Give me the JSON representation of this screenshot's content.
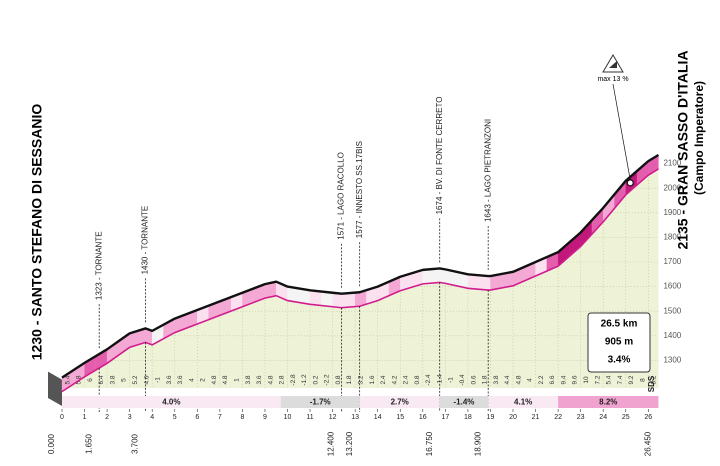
{
  "chart_data": {
    "type": "area",
    "start_label": "1230 - SANTO STEFANO DI SESSANIO",
    "finish_label": "2135 - GRAN SASSO D'ITALIA",
    "finish_sublabel": "(Campo Imperatore)",
    "x": [
      0,
      1,
      2,
      3,
      3.7,
      4,
      5,
      6,
      7,
      8,
      9,
      9.5,
      10,
      11,
      12,
      12.4,
      13.2,
      14,
      15,
      16,
      16.75,
      17,
      18,
      18.9,
      19,
      20,
      21,
      22,
      23,
      24,
      25,
      26,
      26.45
    ],
    "values": [
      1230,
      1290,
      1345,
      1410,
      1430,
      1420,
      1470,
      1505,
      1540,
      1575,
      1610,
      1620,
      1600,
      1585,
      1575,
      1571,
      1577,
      1600,
      1640,
      1668,
      1674,
      1670,
      1650,
      1643,
      1643,
      1660,
      1700,
      1740,
      1820,
      1920,
      2030,
      2110,
      2135
    ],
    "xlim": [
      0,
      26.45
    ],
    "ylim": [
      1200,
      2200
    ],
    "yticks": [
      1300,
      1400,
      1500,
      1600,
      1700,
      1800,
      1900,
      2000,
      2100
    ],
    "xticks": [
      0,
      1,
      2,
      3,
      4,
      5,
      6,
      7,
      8,
      9,
      10,
      11,
      12,
      13,
      14,
      15,
      16,
      17,
      18,
      19,
      20,
      21,
      22,
      23,
      24,
      25,
      26
    ],
    "gradients": [
      5.4,
      5.8,
      6.0,
      6.4,
      3.8,
      5.0,
      5.2,
      4.6,
      -1.0,
      3.6,
      3.6,
      4.0,
      2.0,
      4.8,
      4.8,
      1.0,
      3.8,
      3.6,
      4.8,
      2.8,
      -2.8,
      -1.2,
      0.2,
      -2.2,
      0.8,
      1.8,
      3.2,
      1.6,
      2.4,
      4.2,
      2.4,
      0.8,
      -2.4,
      -1.4,
      -1.0,
      -0.4,
      0.6,
      1.8,
      3.8,
      4.4,
      4.8,
      4.0,
      2.2,
      6.6,
      9.4,
      9.6,
      10.0,
      7.2,
      5.4,
      7.4,
      9.2,
      8.0,
      8.2
    ],
    "sections": [
      {
        "start": 0,
        "end": 9.7,
        "value": 4.0,
        "label": "4.0%"
      },
      {
        "start": 9.7,
        "end": 13.2,
        "value": -1.7,
        "label": "-1.7%"
      },
      {
        "start": 13.2,
        "end": 16.75,
        "value": 2.7,
        "label": "2.7%"
      },
      {
        "start": 16.75,
        "end": 18.9,
        "value": -1.4,
        "label": "-1.4%"
      },
      {
        "start": 18.9,
        "end": 22,
        "value": 4.1,
        "label": "4.1%"
      },
      {
        "start": 22,
        "end": 26.45,
        "value": 8.2,
        "label": "8.2%"
      }
    ],
    "distance_marks": [
      {
        "value": 0,
        "label": "0.000"
      },
      {
        "value": 1.65,
        "label": "1.650"
      },
      {
        "value": 3.7,
        "label": "3.700"
      },
      {
        "value": 12.4,
        "label": "12.400"
      },
      {
        "value": 13.2,
        "label": "13.200"
      },
      {
        "value": 16.75,
        "label": "16.750"
      },
      {
        "value": 18.9,
        "label": "18.900"
      },
      {
        "value": 26.45,
        "label": "26.450"
      }
    ],
    "waypoints": [
      {
        "km": 1.65,
        "label": "1323 - TORNANTE"
      },
      {
        "km": 3.7,
        "label": "1430 - TORNANTE"
      },
      {
        "km": 12.4,
        "label": "1571 - LAGO RACOLLO"
      },
      {
        "km": 13.2,
        "label": "1577 - INNESTO SS.17BIS"
      },
      {
        "km": 16.75,
        "label": "1674 - BV. DI FONTE CERRETO"
      },
      {
        "km": 18.9,
        "label": "1643 - LAGO PIETRANZONI"
      }
    ],
    "max_gradient": {
      "km": 25.2,
      "label": "max 13 %"
    },
    "summary": [
      "26.5 km",
      "905 m",
      "3.4%"
    ],
    "logo": "SDS"
  }
}
